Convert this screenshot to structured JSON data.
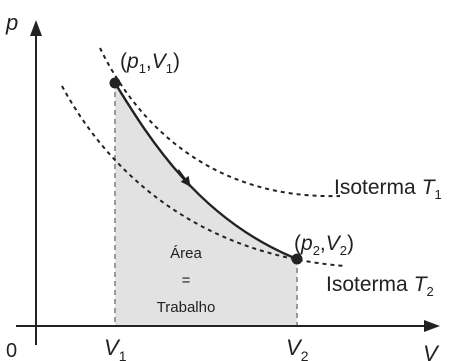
{
  "axes": {
    "y_label": "p",
    "x_label": "V",
    "origin_label": "0",
    "v1": {
      "base": "V",
      "sub": "1"
    },
    "v2": {
      "base": "V",
      "sub": "2"
    }
  },
  "points": {
    "p1v1": {
      "open": "(",
      "p": "p",
      "p_sub": "1",
      "comma": ",",
      "v": "V",
      "v_sub": "1",
      "close": ")"
    },
    "p2v2": {
      "open": "(",
      "p": "p",
      "p_sub": "2",
      "comma": ",",
      "v": "V",
      "v_sub": "2",
      "close": ")"
    }
  },
  "isotherms": {
    "t1": {
      "word": "Isoterma",
      "symbol": "T",
      "sub": "1"
    },
    "t2": {
      "word": "Isoterma",
      "symbol": "T",
      "sub": "2"
    }
  },
  "area_label": {
    "line1": "Área",
    "line2": "=",
    "line3": "Trabalho"
  },
  "colors": {
    "fill": "#e2e2e2",
    "line": "#222222",
    "guide": "#9a9a9a"
  }
}
